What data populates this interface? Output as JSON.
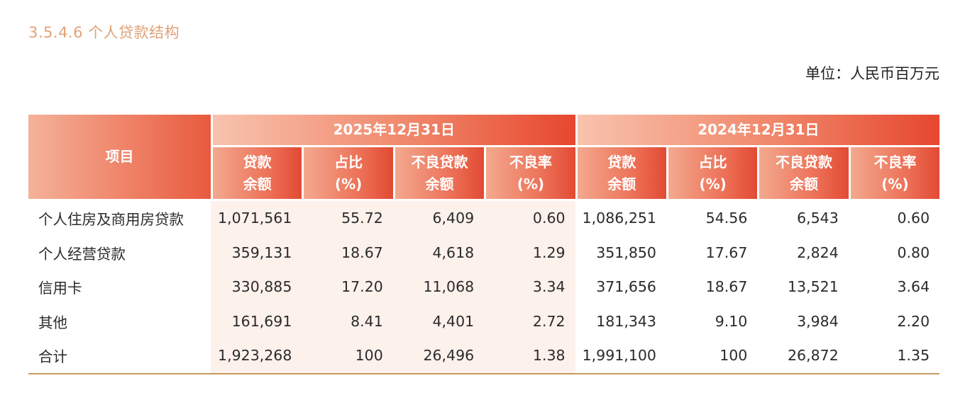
{
  "section_title": "3.5.4.6 个人贷款结构",
  "unit": "单位：人民币百万元",
  "header": {
    "item": "项目",
    "group1": "2025年12月31日",
    "group2": "2024年12月31日",
    "cols": [
      [
        "贷款",
        "余额"
      ],
      [
        "占比",
        "(%)"
      ],
      [
        "不良贷款",
        "余额"
      ],
      [
        "不良率",
        "(%)"
      ]
    ]
  },
  "rows": [
    {
      "name": "个人住房及商用房贷款",
      "v": [
        "1,071,561",
        "55.72",
        "6,409",
        "0.60",
        "1,086,251",
        "54.56",
        "6,543",
        "0.60"
      ]
    },
    {
      "name": "个人经营贷款",
      "v": [
        "359,131",
        "18.67",
        "4,618",
        "1.29",
        "351,850",
        "17.67",
        "2,824",
        "0.80"
      ]
    },
    {
      "name": "信用卡",
      "v": [
        "330,885",
        "17.20",
        "11,068",
        "3.34",
        "371,656",
        "18.67",
        "13,521",
        "3.64"
      ]
    },
    {
      "name": "其他",
      "v": [
        "161,691",
        "8.41",
        "4,401",
        "2.72",
        "181,343",
        "9.10",
        "3,984",
        "2.20"
      ]
    },
    {
      "name": "合计",
      "v": [
        "1,923,268",
        "100",
        "26,496",
        "1.38",
        "1,991,100",
        "100",
        "26,872",
        "1.35"
      ]
    }
  ]
}
